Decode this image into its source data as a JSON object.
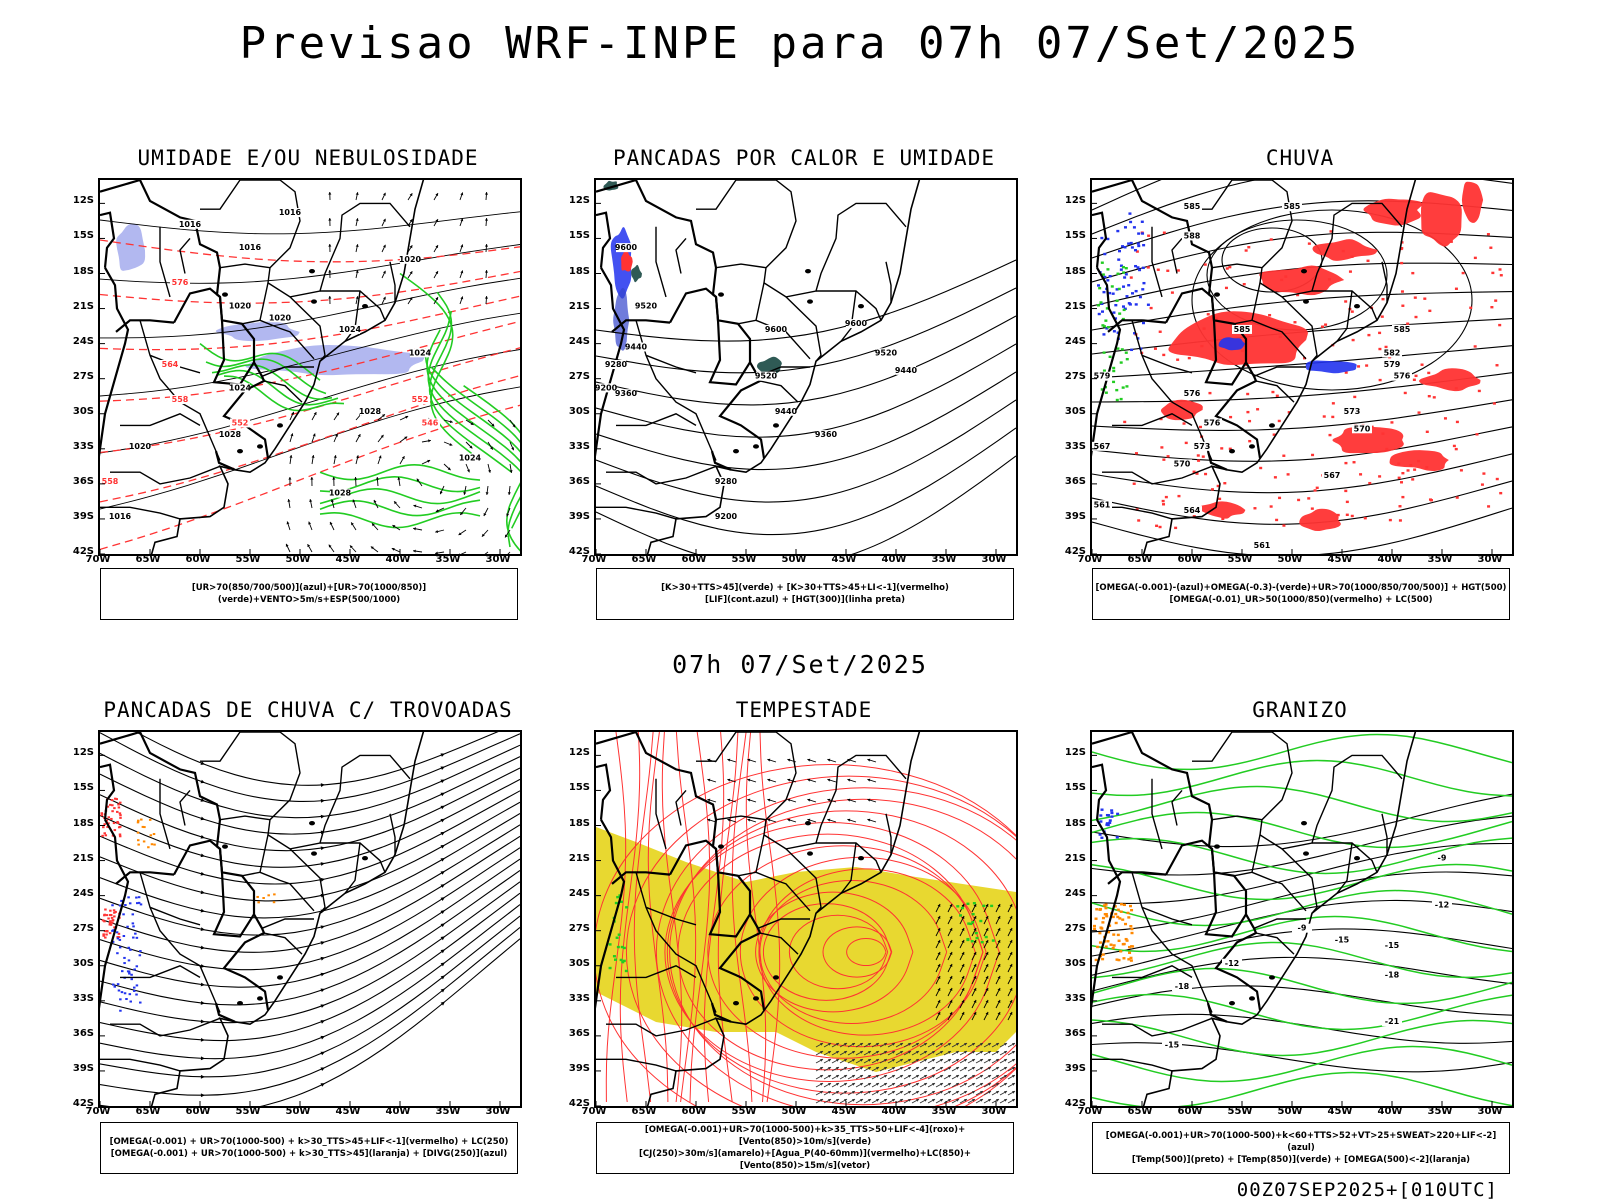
{
  "title": "Previsao WRF-INPE  para 07h 07/Set/2025",
  "mid_title": "07h 07/Set/2025",
  "footer": "00Z07SEP2025+[010UTC]",
  "axes": {
    "y_ticks": [
      "12S",
      "15S",
      "18S",
      "21S",
      "24S",
      "27S",
      "30S",
      "33S",
      "36S",
      "39S",
      "42S"
    ],
    "x_ticks": [
      "70W",
      "65W",
      "60W",
      "55W",
      "50W",
      "45W",
      "40W",
      "35W",
      "30W"
    ]
  },
  "colors": {
    "green": "#22cc22",
    "red": "#ff3333",
    "blue": "#2233ee",
    "lavender": "#aab0ee",
    "yellow": "#e8d830",
    "orange": "#ff8800",
    "teal": "#2f5a55"
  },
  "panels": [
    {
      "id": "umidade",
      "title": "UMIDADE E/OU NEBULOSIDADE",
      "caption": [
        "[UR>70(850/700/500)](azul)+[UR>70(1000/850)](verde)+VENTO>5m/s+ESP(500/1000)"
      ],
      "labels": [
        {
          "text": "1016",
          "lon": -51,
          "lat": -13,
          "color": "#000"
        },
        {
          "text": "1016",
          "lon": -61,
          "lat": -14,
          "color": "#000"
        },
        {
          "text": "1016",
          "lon": -55,
          "lat": -16,
          "color": "#000"
        },
        {
          "text": "1020",
          "lon": -56,
          "lat": -21,
          "color": "#000"
        },
        {
          "text": "1020",
          "lon": -52,
          "lat": -22,
          "color": "#000"
        },
        {
          "text": "1024",
          "lon": -56,
          "lat": -28,
          "color": "#000"
        },
        {
          "text": "1024",
          "lon": -45,
          "lat": -23,
          "color": "#000"
        },
        {
          "text": "1024",
          "lon": -38,
          "lat": -25,
          "color": "#000"
        },
        {
          "text": "1028",
          "lon": -43,
          "lat": -30,
          "color": "#000"
        },
        {
          "text": "1028",
          "lon": -57,
          "lat": -32,
          "color": "#000"
        },
        {
          "text": "1028",
          "lon": -46,
          "lat": -37,
          "color": "#000"
        },
        {
          "text": "1020",
          "lon": -66,
          "lat": -33,
          "color": "#000"
        },
        {
          "text": "1024",
          "lon": -33,
          "lat": -34,
          "color": "#000"
        },
        {
          "text": "1016",
          "lon": -68,
          "lat": -39,
          "color": "#000"
        },
        {
          "text": "1020",
          "lon": -39,
          "lat": -17,
          "color": "#000"
        },
        {
          "text": "564",
          "lon": -63,
          "lat": -26,
          "color": "#ff3333"
        },
        {
          "text": "558",
          "lon": -62,
          "lat": -29,
          "color": "#ff3333"
        },
        {
          "text": "552",
          "lon": -38,
          "lat": -29,
          "color": "#ff3333"
        },
        {
          "text": "546",
          "lon": -37,
          "lat": -31,
          "color": "#ff3333"
        },
        {
          "text": "552",
          "lon": -56,
          "lat": -31,
          "color": "#ff3333"
        },
        {
          "text": "576",
          "lon": -62,
          "lat": -19,
          "color": "#ff3333"
        },
        {
          "text": "558",
          "lon": -69,
          "lat": -36,
          "color": "#ff3333"
        }
      ]
    },
    {
      "id": "pancadas_calor",
      "title": "PANCADAS POR CALOR E UMIDADE",
      "caption": [
        "[K>30+TTS>45](verde) + [K>30+TTS>45+LI<-1](vermelho)",
        "[LIF](cont.azul) + [HGT(300)](linha preta)"
      ],
      "labels": [
        {
          "text": "9600",
          "lon": -67,
          "lat": -16,
          "color": "#000"
        },
        {
          "text": "9520",
          "lon": -65,
          "lat": -21,
          "color": "#000"
        },
        {
          "text": "9440",
          "lon": -66,
          "lat": -24.5,
          "color": "#000"
        },
        {
          "text": "9280",
          "lon": -68,
          "lat": -26,
          "color": "#000"
        },
        {
          "text": "9200",
          "lon": -69,
          "lat": -28,
          "color": "#000"
        },
        {
          "text": "9360",
          "lon": -67,
          "lat": -28.5,
          "color": "#000"
        },
        {
          "text": "9600",
          "lon": -52,
          "lat": -23,
          "color": "#000"
        },
        {
          "text": "9600",
          "lon": -44,
          "lat": -22.5,
          "color": "#000"
        },
        {
          "text": "9520",
          "lon": -41,
          "lat": -25,
          "color": "#000"
        },
        {
          "text": "9520",
          "lon": -53,
          "lat": -27,
          "color": "#000"
        },
        {
          "text": "9440",
          "lon": -39,
          "lat": -26.5,
          "color": "#000"
        },
        {
          "text": "9440",
          "lon": -51,
          "lat": -30,
          "color": "#000"
        },
        {
          "text": "9360",
          "lon": -47,
          "lat": -32,
          "color": "#000"
        },
        {
          "text": "9280",
          "lon": -57,
          "lat": -36,
          "color": "#000"
        },
        {
          "text": "9200",
          "lon": -57,
          "lat": -39,
          "color": "#000"
        }
      ]
    },
    {
      "id": "chuva",
      "title": "CHUVA",
      "caption": [
        "[OMEGA(-0.001)-(azul)+OMEGA(-0.3)-(verde)+UR>70(1000/850/700/500)] + HGT(500)",
        "[OMEGA(-0.01)_UR>50(1000/850)(vermelho) + LC(500)"
      ],
      "labels": [
        {
          "text": "585",
          "lon": -60,
          "lat": -12.5,
          "color": "#000"
        },
        {
          "text": "585",
          "lon": -50,
          "lat": -12.5,
          "color": "#000"
        },
        {
          "text": "588",
          "lon": -60,
          "lat": -15,
          "color": "#000"
        },
        {
          "text": "585",
          "lon": -55,
          "lat": -23,
          "color": "#000"
        },
        {
          "text": "585",
          "lon": -39,
          "lat": -23,
          "color": "#000"
        },
        {
          "text": "582",
          "lon": -40,
          "lat": -25,
          "color": "#000"
        },
        {
          "text": "579",
          "lon": -40,
          "lat": -26,
          "color": "#000"
        },
        {
          "text": "576",
          "lon": -39,
          "lat": -27,
          "color": "#000"
        },
        {
          "text": "573",
          "lon": -44,
          "lat": -30,
          "color": "#000"
        },
        {
          "text": "570",
          "lon": -43,
          "lat": -31.5,
          "color": "#000"
        },
        {
          "text": "576",
          "lon": -60,
          "lat": -28.5,
          "color": "#000"
        },
        {
          "text": "576",
          "lon": -58,
          "lat": -31,
          "color": "#000"
        },
        {
          "text": "573",
          "lon": -59,
          "lat": -33,
          "color": "#000"
        },
        {
          "text": "570",
          "lon": -61,
          "lat": -34.5,
          "color": "#000"
        },
        {
          "text": "567",
          "lon": -46,
          "lat": -35.5,
          "color": "#000"
        },
        {
          "text": "564",
          "lon": -60,
          "lat": -38.5,
          "color": "#000"
        },
        {
          "text": "561",
          "lon": -53,
          "lat": -41.5,
          "color": "#000"
        },
        {
          "text": "567",
          "lon": -69,
          "lat": -33,
          "color": "#000"
        },
        {
          "text": "561",
          "lon": -69,
          "lat": -38,
          "color": "#000"
        },
        {
          "text": "579",
          "lon": -69,
          "lat": -27,
          "color": "#000"
        }
      ]
    },
    {
      "id": "pancadas_trovoadas",
      "title": "PANCADAS DE CHUVA C/ TROVOADAS",
      "caption": [
        "[OMEGA(-0.001) + UR>70(1000-500) + k>30_TTS>45+LIF<-1](vermelho) + LC(250)",
        "[OMEGA(-0.001) + UR>70(1000-500) + k>30_TTS>45](laranja) + [DIVG(250)](azul)"
      ],
      "labels": []
    },
    {
      "id": "tempestade",
      "title": "TEMPESTADE",
      "caption": [
        "[OMEGA(-0.001)+UR>70(1000-500)+k>35_TTS>50+LIF<-4](roxo)+[Vento(850)>10m/s](verde)",
        "[CJ(250)>30m/s](amarelo)+[Agua_P(40-60mm)](vermelho)+LC(850)+[Vento(850)>15m/s](vetor)"
      ],
      "labels": []
    },
    {
      "id": "granizo",
      "title": "GRANIZO",
      "caption": [
        "[OMEGA(-0.001)+UR>70(1000-500)+k<60+TTS>52+VT>25+SWEAT>220+LIF<-2](azul)",
        "[Temp(500)](preto) + [Temp(850)](verde) + [OMEGA(500)<-2](laranja)"
      ],
      "labels": [
        {
          "text": "-9",
          "lon": -35,
          "lat": -21,
          "color": "#000"
        },
        {
          "text": "-12",
          "lon": -35,
          "lat": -25,
          "color": "#000"
        },
        {
          "text": "-15",
          "lon": -45,
          "lat": -28,
          "color": "#000"
        },
        {
          "text": "-9",
          "lon": -49,
          "lat": -27,
          "color": "#000"
        },
        {
          "text": "-15",
          "lon": -40,
          "lat": -28.5,
          "color": "#000"
        },
        {
          "text": "-18",
          "lon": -40,
          "lat": -31,
          "color": "#000"
        },
        {
          "text": "-18",
          "lon": -61,
          "lat": -32,
          "color": "#000"
        },
        {
          "text": "-21",
          "lon": -40,
          "lat": -35,
          "color": "#000"
        },
        {
          "text": "-15",
          "lon": -62,
          "lat": -37,
          "color": "#000"
        },
        {
          "text": "-12",
          "lon": -56,
          "lat": -30,
          "color": "#000"
        }
      ]
    }
  ]
}
